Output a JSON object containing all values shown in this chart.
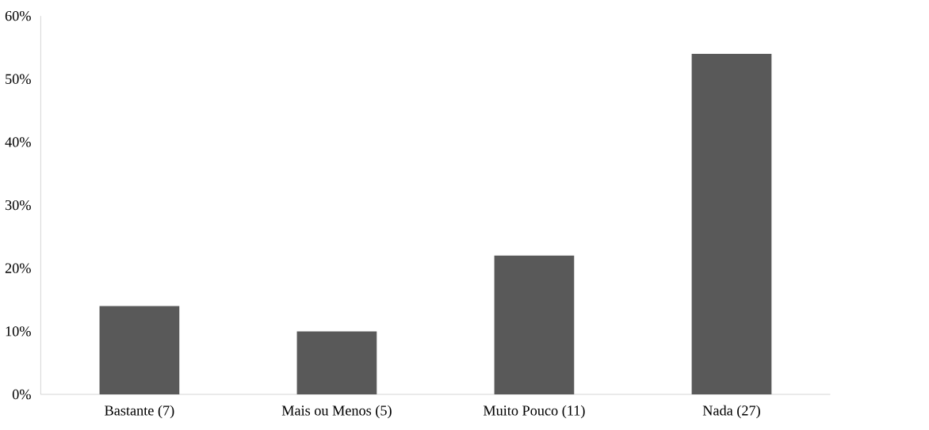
{
  "chart_data": {
    "type": "bar",
    "categories": [
      "Bastante (7)",
      "Mais ou Menos (5)",
      "Muito Pouco (11)",
      "Nada (27)"
    ],
    "values": [
      14,
      10,
      22,
      54
    ],
    "color": "#595959",
    "ylim": [
      0,
      60
    ],
    "yticks": [
      {
        "value": 0,
        "label": "0%"
      },
      {
        "value": 10,
        "label": "10%"
      },
      {
        "value": 20,
        "label": "20%"
      },
      {
        "value": 30,
        "label": "30%"
      },
      {
        "value": 40,
        "label": "40%"
      },
      {
        "value": 50,
        "label": "50%"
      },
      {
        "value": 60,
        "label": "60%"
      }
    ]
  }
}
